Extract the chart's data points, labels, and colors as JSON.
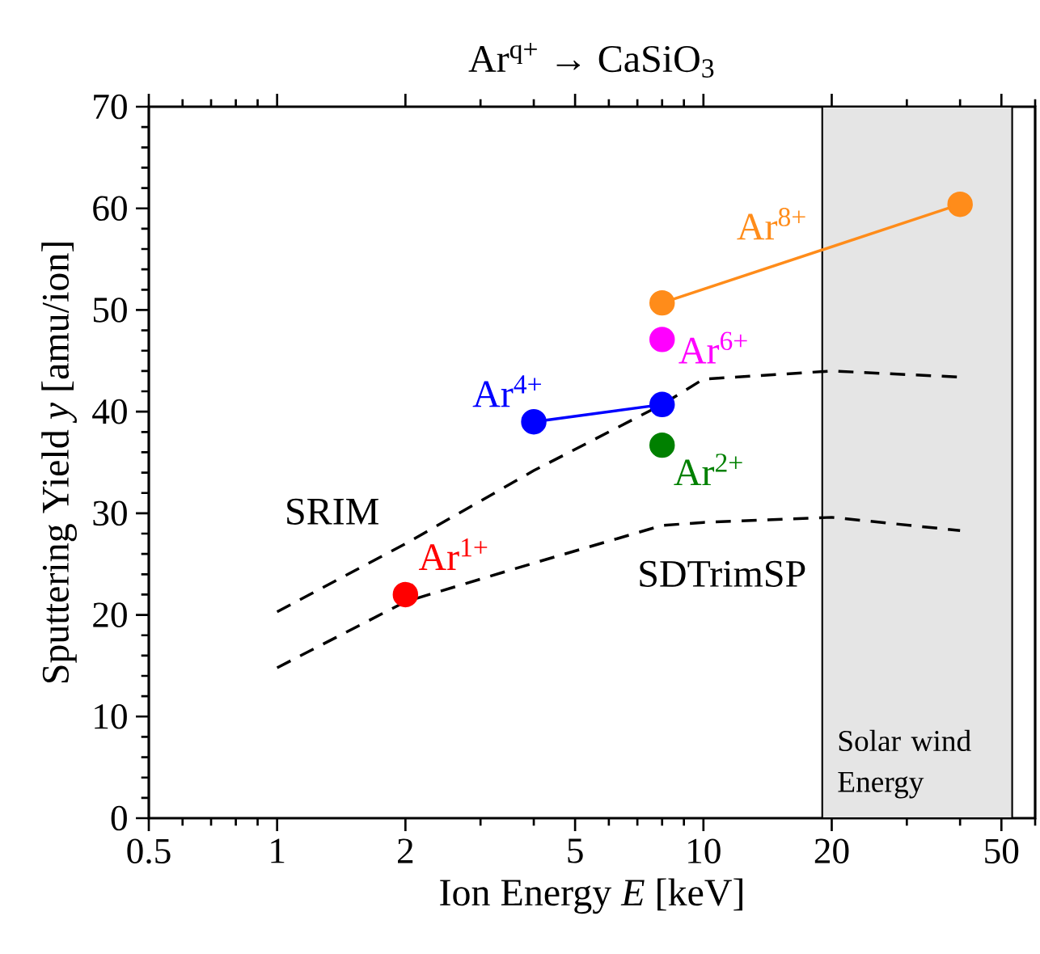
{
  "chart_data": {
    "type": "scatter",
    "title": "Ar$^{q+}$ → CaSiO$_{3}$",
    "xlabel": "Ion Energy *E* [keV]",
    "ylabel": "Sputtering Yield *y* [amu/ion]",
    "log": "x",
    "xlim": [
      0.5,
      60
    ],
    "xticks": [
      0.5,
      1,
      2,
      5,
      10,
      20,
      50
    ],
    "ylim": [
      0,
      70
    ],
    "yticks": [
      0,
      10,
      20,
      30,
      40,
      50,
      60,
      70
    ],
    "legend": false,
    "grid": false,
    "bands": [
      {
        "axis": "x",
        "from": 19,
        "to": 53,
        "label": "Solar wind Energy",
        "color": "#e5e5e5"
      }
    ],
    "series": [
      {
        "name": "SRIM",
        "type": "line",
        "color": "#000000",
        "line_style": "dashed",
        "marker": "none",
        "x": [
          1,
          2,
          4,
          8,
          10,
          20,
          40
        ],
        "values": [
          20.3,
          27.0,
          34.2,
          40.7,
          43.2,
          44.0,
          43.4
        ]
      },
      {
        "name": "SDTrimSP",
        "type": "line",
        "color": "#000000",
        "line_style": "dashed",
        "marker": "none",
        "x": [
          1,
          2,
          4,
          8,
          10,
          20,
          40
        ],
        "values": [
          14.8,
          21.3,
          25.1,
          28.8,
          29.1,
          29.6,
          28.3
        ]
      },
      {
        "name": "Ar$^{1+}$",
        "color": "#ff0000",
        "marker": "circle",
        "x": [
          2
        ],
        "values": [
          22
        ]
      },
      {
        "name": "Ar$^{2+}$",
        "color": "#008000",
        "marker": "circle",
        "x": [
          8
        ],
        "values": [
          36.7
        ]
      },
      {
        "name": "Ar$^{4+}$",
        "type": "line",
        "color": "#0000ff",
        "line_style": "solid",
        "marker": "circle",
        "x": [
          4,
          8
        ],
        "values": [
          39,
          40.7
        ]
      },
      {
        "name": "Ar$^{6+}$",
        "color": "#ff00ff",
        "marker": "circle",
        "x": [
          8
        ],
        "values": [
          47.1
        ]
      },
      {
        "name": "Ar$^{8+}$",
        "type": "line",
        "color": "#ff8c1a",
        "line_style": "solid",
        "marker": "circle",
        "x": [
          8,
          40
        ],
        "values": [
          50.7,
          60.4
        ]
      }
    ]
  }
}
